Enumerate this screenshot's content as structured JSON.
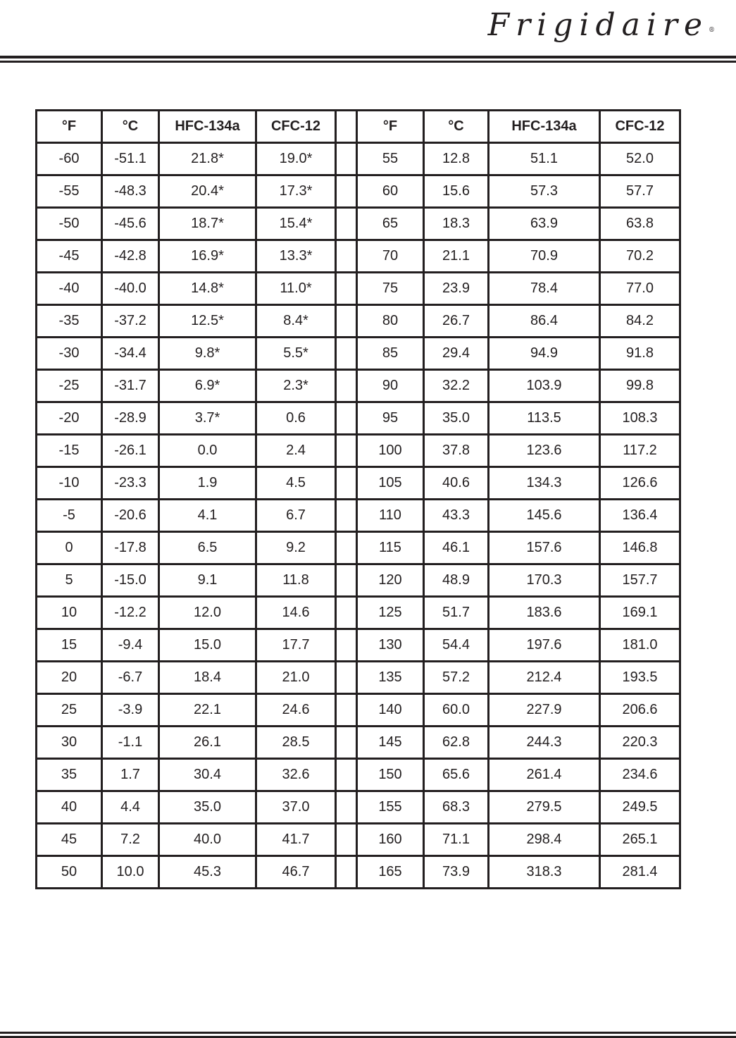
{
  "brand": {
    "logo_text": "Frigidaire",
    "registered": "®"
  },
  "table": {
    "headers": [
      "°F",
      "°C",
      "HFC-134a",
      "CFC-12"
    ],
    "left_rows": [
      [
        "-60",
        "-51.1",
        "21.8*",
        "19.0*"
      ],
      [
        "-55",
        "-48.3",
        "20.4*",
        "17.3*"
      ],
      [
        "-50",
        "-45.6",
        "18.7*",
        "15.4*"
      ],
      [
        "-45",
        "-42.8",
        "16.9*",
        "13.3*"
      ],
      [
        "-40",
        "-40.0",
        "14.8*",
        "11.0*"
      ],
      [
        "-35",
        "-37.2",
        "12.5*",
        "8.4*"
      ],
      [
        "-30",
        "-34.4",
        "9.8*",
        "5.5*"
      ],
      [
        "-25",
        "-31.7",
        "6.9*",
        "2.3*"
      ],
      [
        "-20",
        "-28.9",
        "3.7*",
        "0.6"
      ],
      [
        "-15",
        "-26.1",
        "0.0",
        "2.4"
      ],
      [
        "-10",
        "-23.3",
        "1.9",
        "4.5"
      ],
      [
        "-5",
        "-20.6",
        "4.1",
        "6.7"
      ],
      [
        "0",
        "-17.8",
        "6.5",
        "9.2"
      ],
      [
        "5",
        "-15.0",
        "9.1",
        "11.8"
      ],
      [
        "10",
        "-12.2",
        "12.0",
        "14.6"
      ],
      [
        "15",
        "-9.4",
        "15.0",
        "17.7"
      ],
      [
        "20",
        "-6.7",
        "18.4",
        "21.0"
      ],
      [
        "25",
        "-3.9",
        "22.1",
        "24.6"
      ],
      [
        "30",
        "-1.1",
        "26.1",
        "28.5"
      ],
      [
        "35",
        "1.7",
        "30.4",
        "32.6"
      ],
      [
        "40",
        "4.4",
        "35.0",
        "37.0"
      ],
      [
        "45",
        "7.2",
        "40.0",
        "41.7"
      ],
      [
        "50",
        "10.0",
        "45.3",
        "46.7"
      ]
    ],
    "right_rows": [
      [
        "55",
        "12.8",
        "51.1",
        "52.0"
      ],
      [
        "60",
        "15.6",
        "57.3",
        "57.7"
      ],
      [
        "65",
        "18.3",
        "63.9",
        "63.8"
      ],
      [
        "70",
        "21.1",
        "70.9",
        "70.2"
      ],
      [
        "75",
        "23.9",
        "78.4",
        "77.0"
      ],
      [
        "80",
        "26.7",
        "86.4",
        "84.2"
      ],
      [
        "85",
        "29.4",
        "94.9",
        "91.8"
      ],
      [
        "90",
        "32.2",
        "103.9",
        "99.8"
      ],
      [
        "95",
        "35.0",
        "113.5",
        "108.3"
      ],
      [
        "100",
        "37.8",
        "123.6",
        "117.2"
      ],
      [
        "105",
        "40.6",
        "134.3",
        "126.6"
      ],
      [
        "110",
        "43.3",
        "145.6",
        "136.4"
      ],
      [
        "115",
        "46.1",
        "157.6",
        "146.8"
      ],
      [
        "120",
        "48.9",
        "170.3",
        "157.7"
      ],
      [
        "125",
        "51.7",
        "183.6",
        "169.1"
      ],
      [
        "130",
        "54.4",
        "197.6",
        "181.0"
      ],
      [
        "135",
        "57.2",
        "212.4",
        "193.5"
      ],
      [
        "140",
        "60.0",
        "227.9",
        "206.6"
      ],
      [
        "145",
        "62.8",
        "244.3",
        "220.3"
      ],
      [
        "150",
        "65.6",
        "261.4",
        "234.6"
      ],
      [
        "155",
        "68.3",
        "279.5",
        "249.5"
      ],
      [
        "160",
        "71.1",
        "298.4",
        "265.1"
      ],
      [
        "165",
        "73.9",
        "318.3",
        "281.4"
      ]
    ]
  }
}
